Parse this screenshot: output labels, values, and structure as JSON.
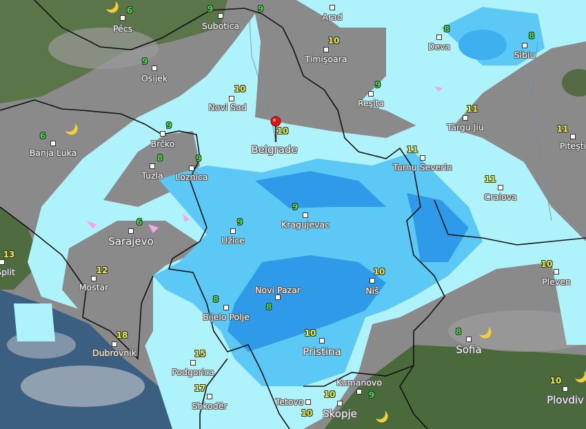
{
  "map": {
    "layer": "precipitation",
    "colors": {
      "land_gray": "#8a8a8a",
      "rain_light": "#aef3fb",
      "rain_medium": "#5cc8f5",
      "rain_heavy": "#2f9be8",
      "snow": "#f3a6e8",
      "temp_cool": "#3fe03f",
      "temp_warm": "#e8f03a",
      "pin": "#e0141a"
    },
    "selected_location": "Belgrade",
    "cities": [
      {
        "name": "Pécs",
        "temp": "6"
      },
      {
        "name": "Subotica",
        "temp": "9"
      },
      {
        "name": "Arad",
        "temp": "9"
      },
      {
        "name": "Osijek",
        "temp": "9"
      },
      {
        "name": "Novi Sad",
        "temp": "10"
      },
      {
        "name": "Timişoara",
        "temp": "10"
      },
      {
        "name": "Deva",
        "temp": "8"
      },
      {
        "name": "Sibiu",
        "temp": "8"
      },
      {
        "name": "Reşiţa",
        "temp": "9"
      },
      {
        "name": "Târgu Jiu",
        "temp": "11"
      },
      {
        "name": "Piteşti",
        "temp": "11"
      },
      {
        "name": "Belgrade",
        "temp": "10"
      },
      {
        "name": "Banja Luka",
        "temp": "6"
      },
      {
        "name": "Brčko",
        "temp": "9"
      },
      {
        "name": "Tuzla",
        "temp": "8"
      },
      {
        "name": "Loznica",
        "temp": "9"
      },
      {
        "name": "Turnu Severin",
        "temp": "11"
      },
      {
        "name": "Craiova",
        "temp": "11"
      },
      {
        "name": "Kragujevac",
        "temp": "9"
      },
      {
        "name": "Sarajevo",
        "temp": "6"
      },
      {
        "name": "Užice",
        "temp": "9"
      },
      {
        "name": "Split",
        "temp": "13"
      },
      {
        "name": "Mostar",
        "temp": "12"
      },
      {
        "name": "Novi Pazar",
        "temp": "8"
      },
      {
        "name": "Niš",
        "temp": "10"
      },
      {
        "name": "Pleven",
        "temp": "10"
      },
      {
        "name": "Bijelo Polje",
        "temp": "8"
      },
      {
        "name": "Dubrovnik",
        "temp": "18"
      },
      {
        "name": "Pristina",
        "temp": "10"
      },
      {
        "name": "Sofia",
        "temp": "8"
      },
      {
        "name": "Podgorica",
        "temp": "15"
      },
      {
        "name": "Shkodër",
        "temp": "17"
      },
      {
        "name": "Kumanovo",
        "temp": "9"
      },
      {
        "name": "Tetovo",
        "temp": "10"
      },
      {
        "name": "Skopje",
        "temp": "10"
      },
      {
        "name": "Plovdiv",
        "temp": "10"
      }
    ],
    "icons": [
      "moon-icon",
      "location-pin-icon"
    ]
  }
}
